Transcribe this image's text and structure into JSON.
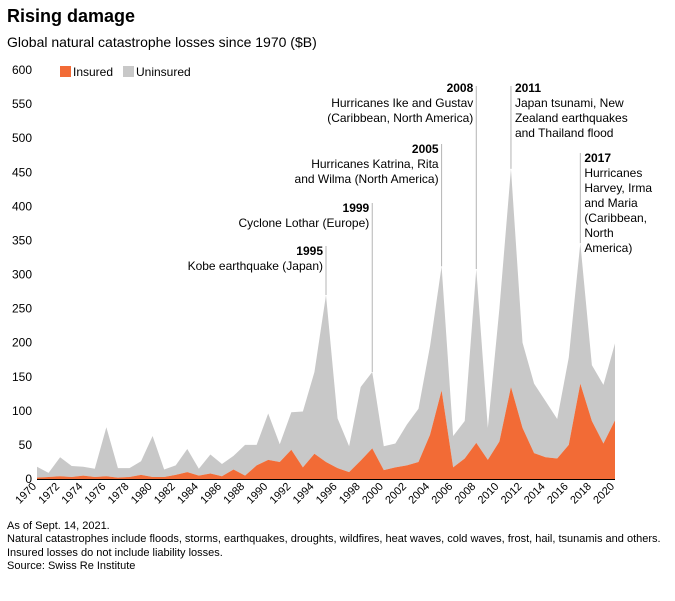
{
  "header": {
    "title": "Rising damage",
    "subtitle": "Global natural catastrophe losses since 1970 ($B)"
  },
  "notes": {
    "line1": "As of Sept. 14, 2021.",
    "line2": "Natural catastrophes include floods, storms, earthquakes, droughts, wildfires, heat waves, cold waves, frost, hail, tsunamis and others.",
    "line3": "Insured losses do not include liability losses.",
    "line4": "Source: Swiss Re Institute"
  },
  "colors": {
    "insured": "#f26b36",
    "uninsured": "#c8c8c8",
    "annotation_line": "#b4b4b4"
  },
  "chart_data": {
    "type": "area",
    "stacked": true,
    "title": "Rising damage",
    "subtitle": "Global natural catastrophe losses since 1970 ($B)",
    "xlabel": "",
    "ylabel": "",
    "ylim": [
      0,
      600
    ],
    "yticks": [
      0,
      50,
      100,
      150,
      200,
      250,
      300,
      350,
      400,
      450,
      500,
      550,
      600
    ],
    "xtick_labels": [
      "1970",
      "1972",
      "1974",
      "1976",
      "1978",
      "1980",
      "1982",
      "1984",
      "1986",
      "1988",
      "1990",
      "1992",
      "1994",
      "1996",
      "1998",
      "2000",
      "2002",
      "2004",
      "2006",
      "2008",
      "2010",
      "2012",
      "2014",
      "2016",
      "2018",
      "2020"
    ],
    "x": [
      1970,
      1971,
      1972,
      1973,
      1974,
      1975,
      1976,
      1977,
      1978,
      1979,
      1980,
      1981,
      1982,
      1983,
      1984,
      1985,
      1986,
      1987,
      1988,
      1989,
      1990,
      1991,
      1992,
      1993,
      1994,
      1995,
      1996,
      1997,
      1998,
      1999,
      2000,
      2001,
      2002,
      2003,
      2004,
      2005,
      2006,
      2007,
      2008,
      2009,
      2010,
      2011,
      2012,
      2013,
      2014,
      2015,
      2016,
      2017,
      2018,
      2019,
      2020
    ],
    "series": [
      {
        "name": "Insured",
        "values": [
          2,
          3,
          4,
          3,
          5,
          3,
          4,
          2,
          3,
          6,
          3,
          3,
          6,
          10,
          5,
          8,
          4,
          14,
          5,
          20,
          28,
          25,
          43,
          17,
          37,
          25,
          16,
          10,
          27,
          45,
          13,
          17,
          20,
          25,
          65,
          130,
          17,
          30,
          53,
          28,
          55,
          135,
          75,
          38,
          32,
          30,
          50,
          140,
          85,
          52,
          86
        ]
      },
      {
        "name": "Uninsured",
        "values": [
          16,
          6,
          28,
          16,
          13,
          12,
          72,
          14,
          13,
          20,
          60,
          11,
          14,
          34,
          10,
          28,
          18,
          20,
          45,
          30,
          68,
          26,
          55,
          82,
          120,
          245,
          73,
          38,
          108,
          112,
          35,
          35,
          60,
          78,
          130,
          182,
          46,
          55,
          255,
          47,
          195,
          320,
          125,
          102,
          82,
          58,
          128,
          206,
          82,
          86,
          113
        ]
      }
    ],
    "legend": [
      "Insured",
      "Uninsured"
    ],
    "legend_position": "top-left",
    "annotations": [
      {
        "year": "1995",
        "x": 1995,
        "text": [
          "Kobe earthquake (Japan)"
        ],
        "align": "right"
      },
      {
        "year": "1999",
        "x": 1999,
        "text": [
          "Cyclone Lothar (Europe)"
        ],
        "align": "right"
      },
      {
        "year": "2005",
        "x": 2005,
        "text": [
          "Hurricanes Katrina, Rita",
          "and Wilma (North America)"
        ],
        "align": "right"
      },
      {
        "year": "2008",
        "x": 2008,
        "text": [
          "Hurricanes Ike and Gustav",
          "(Caribbean, North America)"
        ],
        "align": "right"
      },
      {
        "year": "2011",
        "x": 2011,
        "text": [
          "Japan tsunami, New",
          "Zealand earthquakes",
          "and Thailand flood"
        ],
        "align": "left"
      },
      {
        "year": "2017",
        "x": 2017,
        "text": [
          "Hurricanes",
          "Harvey, Irma",
          "and Maria",
          "(Caribbean,",
          "North",
          "America)"
        ],
        "align": "left"
      }
    ]
  }
}
